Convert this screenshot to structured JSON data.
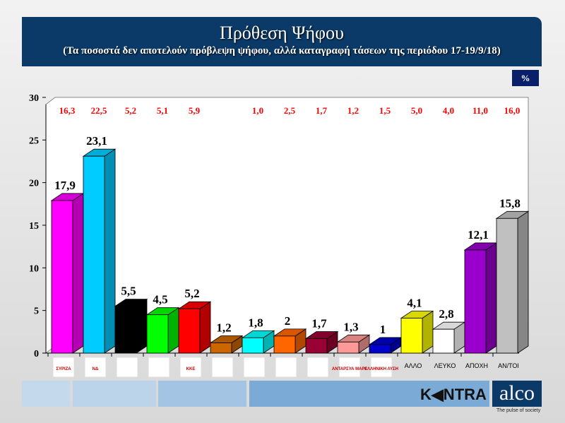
{
  "header": {
    "title": "Πρόθεση Ψήφου",
    "subtitle": "(Τα ποσοστά δεν αποτελούν πρόβλεψη ψήφου, αλλά καταγραφή τάσεων της περιόδου 17-19/9/18)"
  },
  "unit_label": "%",
  "footer": {
    "kontra": "K◀NTRA",
    "alco": "alco",
    "tagline": "The pulse of society"
  },
  "chart_data": {
    "type": "bar",
    "ylim": [
      0,
      30
    ],
    "yticks": [
      "0",
      "5",
      "10",
      "15",
      "20",
      "25",
      "30"
    ],
    "categories": [
      "ΣΥΡΙΖΑ",
      "ΝΔ",
      "",
      "",
      "ΚΚΕ",
      "",
      "",
      "",
      "",
      "ΑΝΤΑΡΣΥΑ ΜΑΡΣ",
      "ΕΛΛΗΝΙΚΗ ΛΥΣΗ",
      "ΑΛΛΟ",
      "ΛΕΥΚΟ",
      "ΑΠΟΧΗ",
      "ΑΝ/ΤΟΙ"
    ],
    "values": [
      17.9,
      23.1,
      5.5,
      4.5,
      5.2,
      1.2,
      1.8,
      2,
      1.7,
      1.3,
      1,
      4.1,
      2.8,
      12.1,
      15.8
    ],
    "value_labels": [
      "17,9",
      "23,1",
      "5,5",
      "4,5",
      "5,2",
      "1,2",
      "1,8",
      "2",
      "1,7",
      "1,3",
      "1",
      "4,1",
      "2,8",
      "12,1",
      "15,8"
    ],
    "previous_labels": [
      "16,3",
      "22,5",
      "5,2",
      "5,1",
      "5,9",
      "",
      "1,0",
      "2,5",
      "1,7",
      "1,2",
      "1,5",
      "5,0",
      "4,0",
      "11,0",
      "16,0"
    ],
    "colors": [
      "#ff00ff",
      "#00ccff",
      "#000000",
      "#00ff00",
      "#ff0000",
      "#cc6600",
      "#00ffff",
      "#ff6600",
      "#990033",
      "#ff9999",
      "#0000cc",
      "#ffff00",
      "#ffffff",
      "#9900cc",
      "#c0c0c0"
    ],
    "grid": false
  }
}
